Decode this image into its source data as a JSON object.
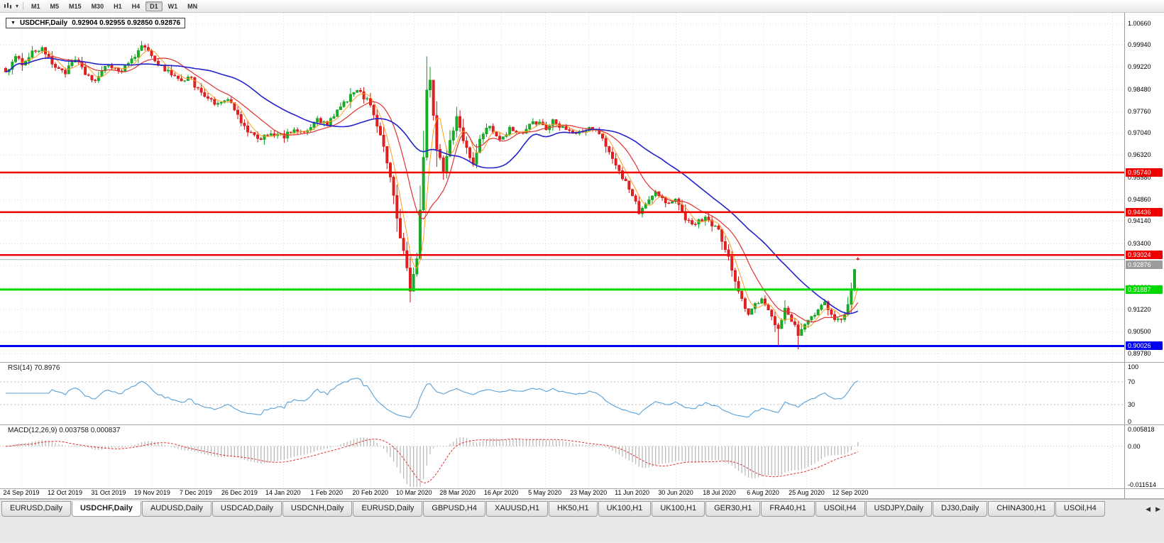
{
  "toolbar": {
    "dropdown_icon": "▾",
    "timeframes": [
      {
        "label": "M1"
      },
      {
        "label": "M5"
      },
      {
        "label": "M15"
      },
      {
        "label": "M30"
      },
      {
        "label": "H1"
      },
      {
        "label": "H4"
      },
      {
        "label": "D1",
        "active": true
      },
      {
        "label": "W1"
      },
      {
        "label": "MN"
      }
    ]
  },
  "chart": {
    "symbol": "USDCHF,Daily",
    "ohlc": "0.92904 0.92955 0.92850 0.92876",
    "collapse_icon": "▼",
    "price_axis_labels": [
      "1.00660",
      "0.99940",
      "0.99220",
      "0.98480",
      "0.97760",
      "0.97040",
      "0.96320",
      "0.95580",
      "0.94860",
      "0.94140",
      "0.93400",
      "0.92680",
      "0.91960",
      "0.91220",
      "0.90500",
      "0.89780"
    ],
    "date_labels": [
      "24 Sep 2019",
      "12 Oct 2019",
      "31 Oct 2019",
      "19 Nov 2019",
      "7 Dec 2019",
      "26 Dec 2019",
      "14 Jan 2020",
      "1 Feb 2020",
      "20 Feb 2020",
      "10 Mar 2020",
      "28 Mar 2020",
      "16 Apr 2020",
      "5 May 2020",
      "23 May 2020",
      "11 Jun 2020",
      "30 Jun 2020",
      "18 Jul 2020",
      "6 Aug 2020",
      "25 Aug 2020",
      "12 Sep 2020"
    ],
    "hlines": [
      {
        "price": 0.9574,
        "label": "0.95740",
        "color": "#ee0000",
        "width": 2.5
      },
      {
        "price": 0.94436,
        "label": "0.94436",
        "color": "#ee0000",
        "width": 2.5
      },
      {
        "price": 0.93024,
        "label": "0.93024",
        "color": "#ee0000",
        "width": 2.5
      },
      {
        "price": 0.91887,
        "label": "0.91887",
        "color": "#00d800",
        "width": 3
      },
      {
        "price": 0.90026,
        "label": "0.90026",
        "color": "#0000f0",
        "width": 3
      }
    ],
    "current_price": {
      "label": "0.92876",
      "value": 0.92876,
      "color": "#b4b4b4"
    },
    "colors": {
      "bull": "#0d9d1d",
      "bullFill": "#17ad27",
      "bear": "#cf1212",
      "bearFill": "#e22020",
      "ma_fast": "#ff9d1e",
      "ma_mid": "#e03232",
      "ma_slow": "#2222cd",
      "grid": "#dcdcdc",
      "rsi_line": "#56a0d8",
      "macd_hist": "#b6b6b6",
      "macd_signal": "#e03232"
    }
  },
  "rsi": {
    "label": "RSI(14) 70.8976",
    "axis_labels": [
      "100",
      "70",
      "30",
      "0"
    ],
    "axis_values": [
      100,
      70,
      30,
      0
    ],
    "guide_levels": [
      70,
      30
    ]
  },
  "macd": {
    "label": "MACD(12,26,9) 0.003758 0.000837",
    "axis_labels": [
      "0.005818",
      "0.00",
      "-0.011514"
    ],
    "axis_values": [
      0.005818,
      0,
      -0.011514
    ]
  },
  "tabs": [
    {
      "label": "EURUSD,Daily"
    },
    {
      "label": "USDCHF,Daily",
      "active": true
    },
    {
      "label": "AUDUSD,Daily"
    },
    {
      "label": "USDCAD,Daily"
    },
    {
      "label": "USDCNH,Daily"
    },
    {
      "label": "EURUSD,Daily"
    },
    {
      "label": "GBPUSD,H4"
    },
    {
      "label": "XAUUSD,H1"
    },
    {
      "label": "HK50,H1"
    },
    {
      "label": "UK100,H1"
    },
    {
      "label": "UK100,H1"
    },
    {
      "label": "GER30,H1"
    },
    {
      "label": "FRA40,H1"
    },
    {
      "label": "USOil,H4"
    },
    {
      "label": "USDJPY,Daily"
    },
    {
      "label": "DJ30,Daily"
    },
    {
      "label": "CHINA300,H1"
    },
    {
      "label": "USOil,H4"
    }
  ],
  "tabs_nav": {
    "left": "◀",
    "right": "▶"
  },
  "chart_data": {
    "type": "candlestick",
    "symbol": "USDCHF",
    "timeframe": "Daily",
    "open": "0.92904",
    "high": "0.92955",
    "low": "0.92850",
    "close": "0.92876",
    "bars": 258,
    "y_range": [
      0.895,
      1.01
    ],
    "levels": [
      0.9574,
      0.94436,
      0.93024,
      0.91887,
      0.90026
    ],
    "indicators": [
      {
        "name": "RSI",
        "period": 14,
        "value": 70.8976
      },
      {
        "name": "MACD",
        "params": "12,26,9",
        "main": 0.003758,
        "signal": 0.000837
      },
      {
        "name": "MovingAverages",
        "periods": [
          5,
          13,
          34
        ]
      }
    ],
    "waypoints": [
      [
        0,
        0.9905
      ],
      [
        3,
        0.995
      ],
      [
        5,
        0.9935
      ],
      [
        8,
        0.997
      ],
      [
        11,
        0.9985
      ],
      [
        14,
        0.993
      ],
      [
        18,
        0.9905
      ],
      [
        21,
        0.9945
      ],
      [
        24,
        0.99
      ],
      [
        27,
        0.9875
      ],
      [
        31,
        0.993
      ],
      [
        35,
        0.9905
      ],
      [
        38,
        0.995
      ],
      [
        41,
        0.9985
      ],
      [
        44,
        0.9965
      ],
      [
        46,
        0.993
      ],
      [
        50,
        0.99
      ],
      [
        53,
        0.9875
      ],
      [
        56,
        0.989
      ],
      [
        57,
        0.9855
      ],
      [
        60,
        0.983
      ],
      [
        64,
        0.9795
      ],
      [
        67,
        0.9815
      ],
      [
        70,
        0.976
      ],
      [
        73,
        0.9705
      ],
      [
        76,
        0.9685
      ],
      [
        80,
        0.9705
      ],
      [
        84,
        0.969
      ],
      [
        87,
        0.972
      ],
      [
        90,
        0.97
      ],
      [
        94,
        0.9748
      ],
      [
        97,
        0.973
      ],
      [
        100,
        0.9775
      ],
      [
        103,
        0.9815
      ],
      [
        106,
        0.9845
      ],
      [
        110,
        0.98
      ],
      [
        113,
        0.97
      ],
      [
        115,
        0.961
      ],
      [
        117,
        0.95
      ],
      [
        119,
        0.936
      ],
      [
        121,
        0.926
      ],
      [
        122,
        0.9185
      ],
      [
        124,
        0.929
      ],
      [
        125,
        0.945
      ],
      [
        126,
        0.963
      ],
      [
        127,
        0.984
      ],
      [
        128,
        0.988
      ],
      [
        129,
        0.976
      ],
      [
        130,
        0.965
      ],
      [
        132,
        0.958
      ],
      [
        134,
        0.968
      ],
      [
        136,
        0.9755
      ],
      [
        139,
        0.965
      ],
      [
        141,
        0.9605
      ],
      [
        143,
        0.968
      ],
      [
        146,
        0.973
      ],
      [
        149,
        0.968
      ],
      [
        152,
        0.972
      ],
      [
        156,
        0.97
      ],
      [
        159,
        0.9745
      ],
      [
        163,
        0.972
      ],
      [
        165,
        0.975
      ],
      [
        168,
        0.972
      ],
      [
        172,
        0.97
      ],
      [
        176,
        0.972
      ],
      [
        179,
        0.97
      ],
      [
        182,
        0.9645
      ],
      [
        186,
        0.956
      ],
      [
        189,
        0.95
      ],
      [
        191,
        0.9445
      ],
      [
        194,
        0.948
      ],
      [
        196,
        0.951
      ],
      [
        200,
        0.947
      ],
      [
        202,
        0.948
      ],
      [
        205,
        0.9425
      ],
      [
        208,
        0.9405
      ],
      [
        211,
        0.943
      ],
      [
        215,
        0.938
      ],
      [
        218,
        0.93
      ],
      [
        220,
        0.921
      ],
      [
        222,
        0.9155
      ],
      [
        224,
        0.9105
      ],
      [
        226,
        0.9135
      ],
      [
        228,
        0.916
      ],
      [
        231,
        0.91
      ],
      [
        233,
        0.9055
      ],
      [
        235,
        0.912
      ],
      [
        237,
        0.909
      ],
      [
        239,
        0.904
      ],
      [
        242,
        0.908
      ],
      [
        245,
        0.9125
      ],
      [
        247,
        0.9145
      ],
      [
        249,
        0.91
      ],
      [
        251,
        0.9085
      ],
      [
        253,
        0.9105
      ],
      [
        254,
        0.9135
      ],
      [
        255,
        0.919
      ],
      [
        256,
        0.9255
      ],
      [
        257,
        0.9288
      ]
    ]
  }
}
